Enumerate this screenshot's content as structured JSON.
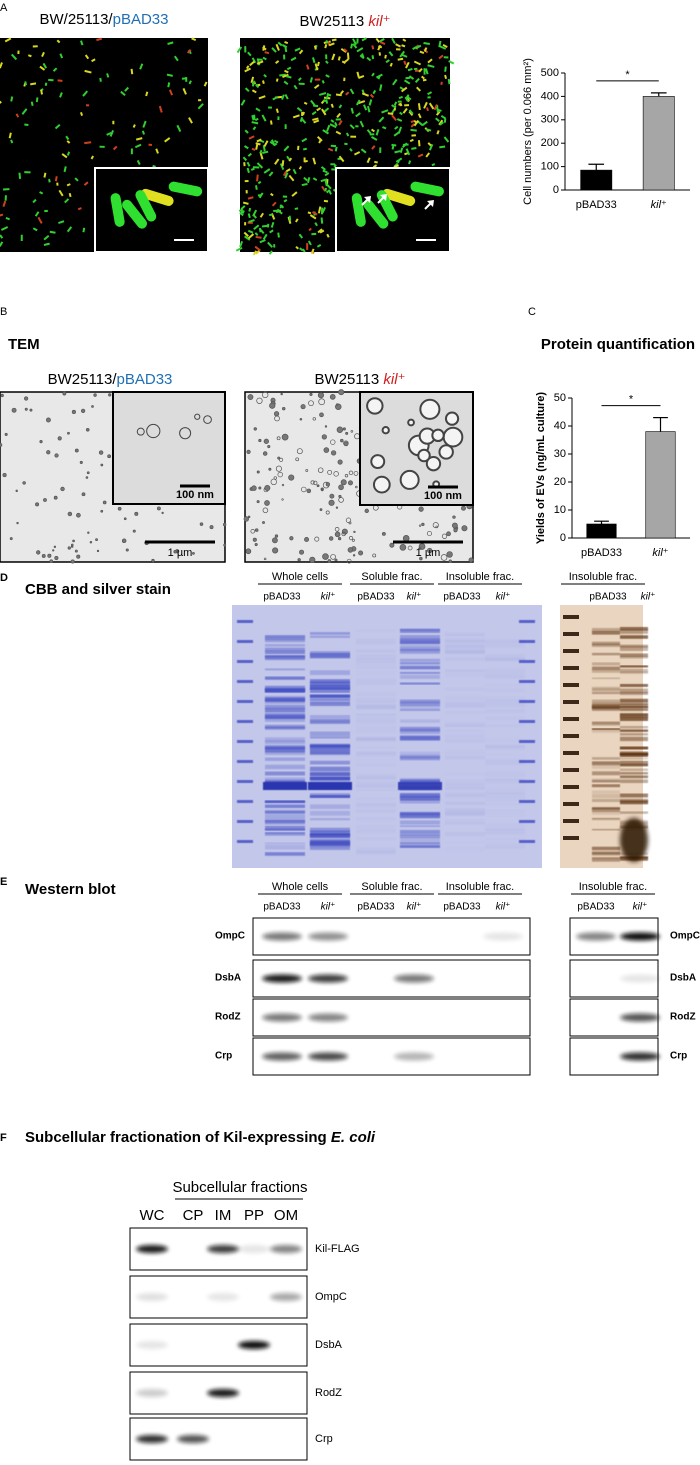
{
  "panel_a": {
    "label": "A",
    "image_titles": [
      [
        {
          "text": "BW/25113/"
        },
        {
          "text": "pBAD33",
          "color": "#1f6fb5"
        }
      ],
      [
        {
          "text": "BW25113 "
        },
        {
          "text": "kil⁺",
          "color": "#d0201f",
          "italic": true
        }
      ]
    ]
  },
  "panel_b": {
    "label": "B",
    "title": "TEM",
    "image_titles": [
      [
        {
          "text": "BW25113/"
        },
        {
          "text": "pBAD33",
          "color": "#1f6fb5"
        }
      ],
      [
        {
          "text": "BW25113 "
        },
        {
          "text": "kil⁺",
          "color": "#d0201f",
          "italic": true
        }
      ]
    ],
    "inset_scale": "100 nm",
    "scale": "1 µm"
  },
  "panel_c": {
    "label": "C",
    "title": "Protein quantification"
  },
  "panel_d": {
    "label": "D",
    "title": "CBB and silver stain",
    "groups": [
      "Whole cells",
      "Soluble frac.",
      "Insoluble frac."
    ],
    "lanes": [
      {
        "text": "pBAD33",
        "color": "#1f6fb5"
      },
      {
        "text": "kil⁺",
        "color": "#d0201f",
        "italic": true
      },
      {
        "text": "pBAD33",
        "color": "#1f6fb5"
      },
      {
        "text": "kil⁺",
        "color": "#d0201f",
        "italic": true
      },
      {
        "text": "pBAD33",
        "color": "#1f6fb5"
      },
      {
        "text": "kil⁺",
        "color": "#d0201f",
        "italic": true
      }
    ],
    "right_group": "Insoluble frac.",
    "right_lanes": [
      {
        "text": "pBAD33",
        "color": "#1f6fb5"
      },
      {
        "text": "kil⁺",
        "color": "#d0201f",
        "italic": true
      }
    ]
  },
  "panel_e": {
    "label": "E",
    "title": "Western blot",
    "groups": [
      "Whole cells",
      "Soluble frac.",
      "Insoluble frac."
    ],
    "lanes": [
      {
        "text": "pBAD33",
        "color": "#1f6fb5"
      },
      {
        "text": "kil⁺",
        "color": "#d0201f",
        "italic": true
      },
      {
        "text": "pBAD33",
        "color": "#1f6fb5"
      },
      {
        "text": "kil⁺",
        "color": "#d0201f",
        "italic": true
      },
      {
        "text": "pBAD33",
        "color": "#1f6fb5"
      },
      {
        "text": "kil⁺",
        "color": "#d0201f",
        "italic": true
      }
    ],
    "right_group": "Insoluble frac.",
    "right_lanes": [
      {
        "text": "pBAD33",
        "color": "#1f6fb5"
      },
      {
        "text": "kil⁺",
        "color": "#d0201f",
        "italic": true
      }
    ],
    "rows": [
      "OmpC",
      "DsbA",
      "RodZ",
      "Crp"
    ]
  },
  "panel_f": {
    "label": "F",
    "title": [
      {
        "text": "Subcellular fractionation of Kil-expressing "
      },
      {
        "text": "E. coli",
        "italic": true
      }
    ],
    "group": "Subcellular fractions",
    "lanes": [
      "WC",
      "CP",
      "IM",
      "PP",
      "OM"
    ],
    "rows": [
      "Kil-FLAG",
      "OmpC",
      "DsbA",
      "RodZ",
      "Crp"
    ]
  },
  "chart_data": [
    {
      "type": "bar",
      "ylabel": "Cell numbers (per 0.066 mm²)",
      "categories": [
        "pBAD33",
        "kil⁺"
      ],
      "category_colors": [
        "#1f6fb5",
        "#d0201f"
      ],
      "category_italic": [
        false,
        true
      ],
      "values": [
        85,
        400
      ],
      "errors": [
        25,
        15
      ],
      "colors": [
        "#000000",
        "#a6a6a6"
      ],
      "ylim": [
        0,
        500
      ],
      "yticks": [
        0,
        100,
        200,
        300,
        400,
        500
      ],
      "annotation": "*"
    },
    {
      "type": "bar",
      "ylabel": "Yields of EVs  (ng/mL culture)",
      "categories": [
        "pBAD33",
        "kil⁺"
      ],
      "category_colors": [
        "#1f6fb5",
        "#d0201f"
      ],
      "category_italic": [
        false,
        true
      ],
      "values": [
        5,
        38
      ],
      "errors": [
        1,
        5
      ],
      "colors": [
        "#000000",
        "#a6a6a6"
      ],
      "ylim": [
        0,
        50
      ],
      "yticks": [
        0,
        10,
        20,
        30,
        40,
        50
      ],
      "annotation": "*"
    }
  ]
}
